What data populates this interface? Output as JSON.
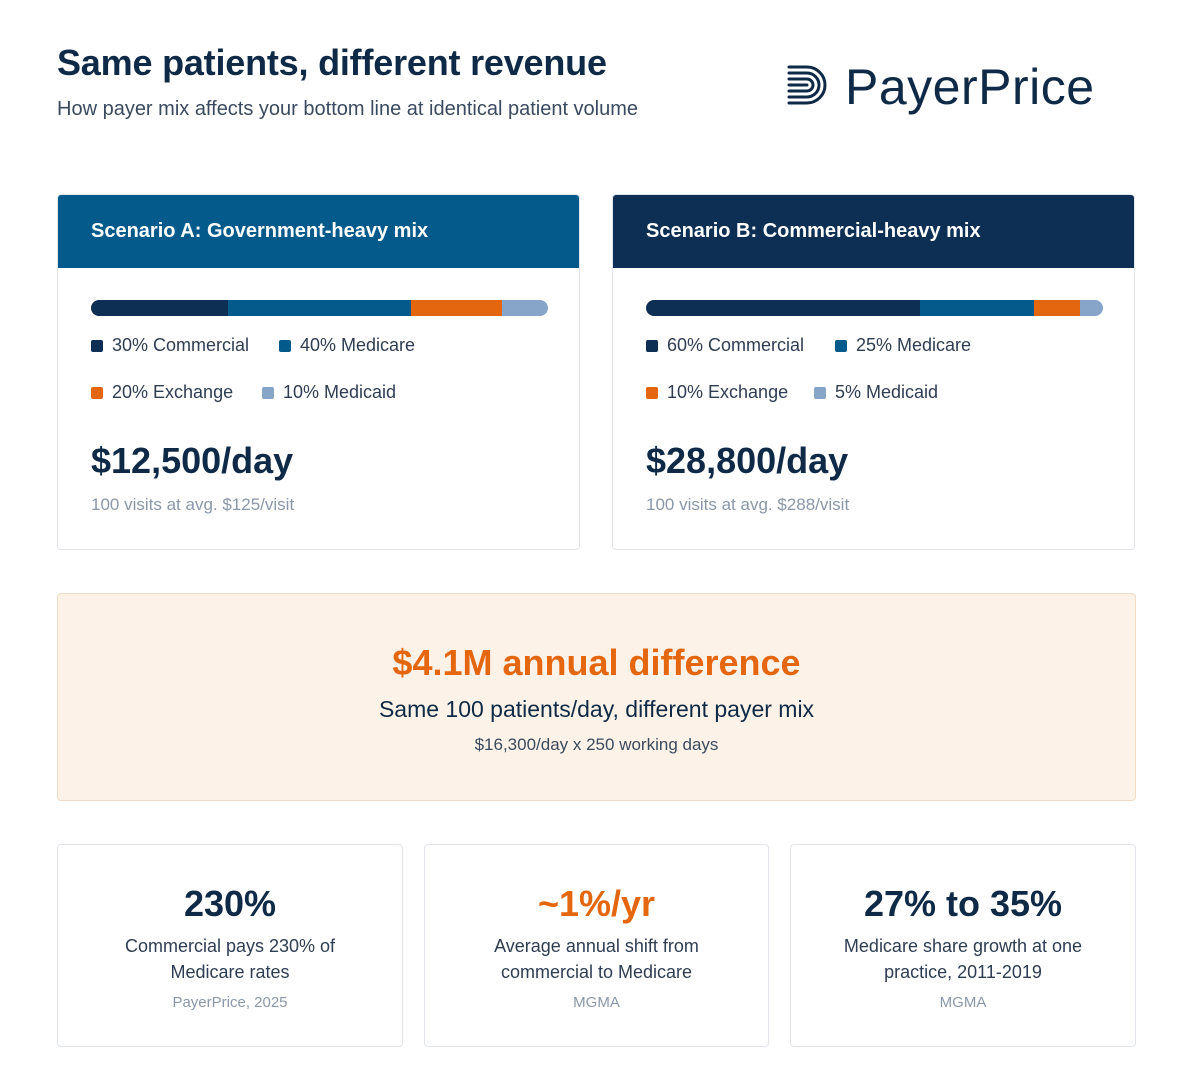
{
  "header": {
    "title": "Same patients, different revenue",
    "subtitle": "How payer mix affects your bottom line at identical patient volume",
    "logo_text": "PayerPrice"
  },
  "colors": {
    "commercial": "#0d2f54",
    "medicare": "#055a8c",
    "exchange": "#e4660e",
    "medicaid": "#86a5c8",
    "accent": "#e4660e"
  },
  "scenarios": [
    {
      "title": "Scenario A: Government-heavy mix",
      "amount": "$12,500/day",
      "note": "100 visits at avg. $125/visit",
      "legend": [
        "30% Commercial",
        "40% Medicare",
        "20% Exchange",
        "10% Medicaid"
      ]
    },
    {
      "title": "Scenario B: Commercial-heavy mix",
      "amount": "$28,800/day",
      "note": "100 visits at avg. $288/visit",
      "legend": [
        "60% Commercial",
        "25% Medicare",
        "10% Exchange",
        "5% Medicaid"
      ]
    }
  ],
  "difference": {
    "title": "$4.1M annual difference",
    "subtitle": "Same 100 patients/day, different payer mix",
    "note": "$16,300/day x 250 working days"
  },
  "stats": [
    {
      "value": "230%",
      "desc": "Commercial pays 230% of Medicare rates",
      "source": "PayerPrice, 2025"
    },
    {
      "value": "~1%/yr",
      "desc": "Average annual shift from commercial to Medicare",
      "source": "MGMA"
    },
    {
      "value": "27% to 35%",
      "desc": "Medicare share growth at one practice, 2011-2019",
      "source": "MGMA"
    }
  ],
  "chart_data": [
    {
      "type": "bar",
      "stacked": true,
      "orientation": "horizontal",
      "title": "Scenario A: Government-heavy mix",
      "categories": [
        "Commercial",
        "Medicare",
        "Exchange",
        "Medicaid"
      ],
      "values": [
        30,
        40,
        20,
        10
      ],
      "unit": "%"
    },
    {
      "type": "bar",
      "stacked": true,
      "orientation": "horizontal",
      "title": "Scenario B: Commercial-heavy mix",
      "categories": [
        "Commercial",
        "Medicare",
        "Exchange",
        "Medicaid"
      ],
      "values": [
        60,
        25,
        10,
        5
      ],
      "unit": "%"
    }
  ]
}
